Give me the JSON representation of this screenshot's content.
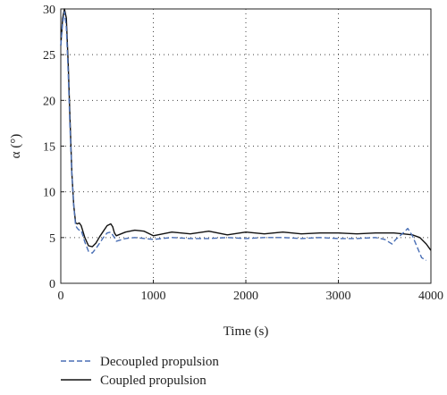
{
  "chart_data": {
    "type": "line",
    "title": "",
    "xlabel": "Time (s)",
    "ylabel": "α (°)",
    "xlim": [
      0,
      4000
    ],
    "ylim": [
      0,
      30
    ],
    "xticks": [
      0,
      1000,
      2000,
      3000,
      4000
    ],
    "yticks": [
      0,
      5,
      10,
      15,
      20,
      25,
      30
    ],
    "grid": "dotted",
    "legend_position": "bottom-left, below plot",
    "series": [
      {
        "name": "Decoupled propulsion",
        "color": "#4a6fb5",
        "style": "dashed",
        "x": [
          0,
          20,
          40,
          60,
          80,
          100,
          120,
          140,
          160,
          180,
          200,
          220,
          260,
          300,
          340,
          380,
          420,
          460,
          500,
          540,
          560,
          580,
          600,
          700,
          800,
          1000,
          1200,
          1400,
          1600,
          1800,
          2000,
          2200,
          2400,
          2600,
          2800,
          3000,
          3200,
          3400,
          3500,
          3580,
          3620,
          3700,
          3750,
          3800,
          3850,
          3900,
          3950
        ],
        "values": [
          26,
          28.5,
          29.7,
          28,
          23,
          17,
          12,
          8.5,
          6.3,
          6.0,
          5.8,
          5.8,
          4.5,
          3.5,
          3.3,
          3.8,
          4.4,
          5.0,
          5.5,
          5.6,
          5.3,
          5.0,
          4.6,
          4.9,
          5.0,
          4.8,
          5.0,
          4.9,
          4.9,
          5.0,
          4.9,
          5.0,
          5.0,
          4.9,
          5.0,
          4.9,
          4.9,
          5.0,
          4.8,
          4.3,
          4.8,
          5.5,
          6.0,
          5.2,
          4.0,
          2.8,
          2.5
        ]
      },
      {
        "name": "Coupled propulsion",
        "color": "#111111",
        "style": "solid",
        "x": [
          0,
          20,
          40,
          60,
          80,
          100,
          120,
          140,
          160,
          180,
          200,
          220,
          260,
          300,
          340,
          380,
          420,
          460,
          500,
          540,
          560,
          580,
          600,
          700,
          800,
          900,
          1000,
          1200,
          1400,
          1600,
          1800,
          2000,
          2200,
          2400,
          2600,
          2800,
          3000,
          3200,
          3400,
          3600,
          3700,
          3800,
          3880,
          3950,
          4000
        ],
        "values": [
          26,
          29,
          30,
          29,
          24,
          18,
          12,
          8.5,
          6.6,
          6.5,
          6.6,
          6.3,
          5.0,
          4.1,
          4.0,
          4.4,
          5.1,
          5.7,
          6.3,
          6.5,
          6.2,
          5.5,
          5.2,
          5.6,
          5.8,
          5.7,
          5.2,
          5.6,
          5.4,
          5.7,
          5.3,
          5.6,
          5.4,
          5.6,
          5.4,
          5.5,
          5.5,
          5.4,
          5.5,
          5.5,
          5.4,
          5.3,
          5.0,
          4.3,
          3.6
        ]
      }
    ]
  }
}
